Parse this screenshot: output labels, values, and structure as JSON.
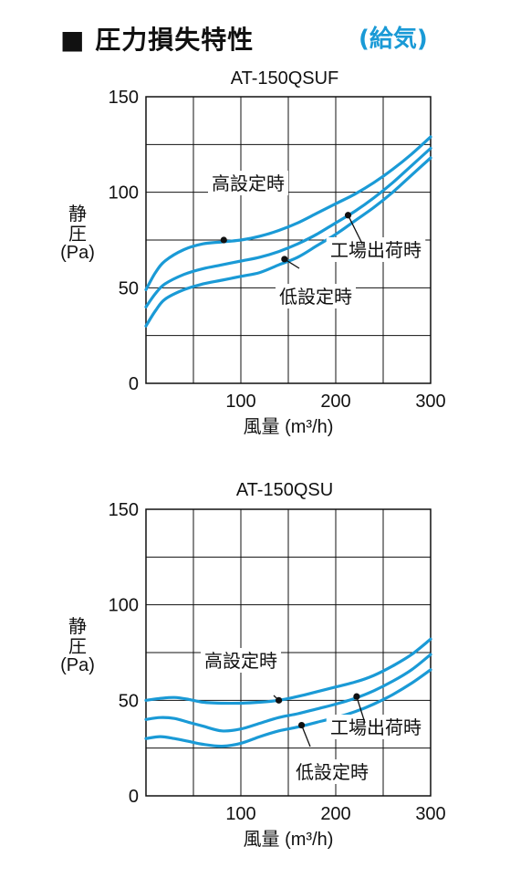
{
  "header": {
    "title": "■ 圧力損失特性",
    "subtitle": "(給気)",
    "subtitle_color": "#1a9ad6"
  },
  "colors": {
    "curve": "#1a9ad6",
    "grid": "#111111",
    "marker": "#111111"
  },
  "chart_data": [
    {
      "type": "line",
      "title": "AT-150QSUF",
      "xlabel": "風量 (m³/h)",
      "ylabel": "静圧 (Pa)",
      "xlim": [
        0,
        300
      ],
      "ylim": [
        0,
        150
      ],
      "xticks": [
        100,
        200,
        300
      ],
      "yticks": [
        0,
        50,
        100,
        150
      ],
      "grid": true,
      "series": [
        {
          "name": "高設定時",
          "x": [
            0,
            10,
            20,
            40,
            60,
            80,
            100,
            120,
            140,
            160,
            180,
            200,
            220,
            240,
            260,
            280,
            300
          ],
          "y": [
            49,
            58,
            64,
            70,
            73,
            74,
            75,
            77,
            80,
            84,
            89,
            94,
            99,
            105,
            112,
            120,
            129
          ]
        },
        {
          "name": "工場出荷時",
          "x": [
            0,
            10,
            20,
            40,
            60,
            80,
            100,
            120,
            140,
            160,
            180,
            200,
            220,
            240,
            260,
            280,
            300
          ],
          "y": [
            40,
            47,
            52,
            57,
            60,
            62,
            64,
            66,
            69,
            73,
            78,
            84,
            90,
            97,
            105,
            114,
            123
          ]
        },
        {
          "name": "低設定時",
          "x": [
            0,
            10,
            20,
            40,
            60,
            80,
            100,
            120,
            140,
            160,
            180,
            200,
            220,
            240,
            260,
            280,
            300
          ],
          "y": [
            30,
            38,
            44,
            49,
            52,
            54,
            56,
            58,
            62,
            66,
            72,
            78,
            85,
            92,
            100,
            109,
            118
          ]
        }
      ],
      "annotations": [
        {
          "text": "高設定時",
          "x": 82,
          "y": 75
        },
        {
          "text": "工場出荷時",
          "x": 213,
          "y": 88
        },
        {
          "text": "低設定時",
          "x": 146,
          "y": 65
        }
      ]
    },
    {
      "type": "line",
      "title": "AT-150QSU",
      "xlabel": "風量 (m³/h)",
      "ylabel": "静圧 (Pa)",
      "xlim": [
        0,
        300
      ],
      "ylim": [
        0,
        150
      ],
      "xticks": [
        100,
        200,
        300
      ],
      "yticks": [
        0,
        50,
        100,
        150
      ],
      "grid": true,
      "series": [
        {
          "name": "高設定時",
          "x": [
            0,
            15,
            30,
            45,
            60,
            80,
            100,
            120,
            140,
            160,
            180,
            200,
            220,
            240,
            260,
            280,
            300
          ],
          "y": [
            50,
            51,
            51.5,
            50.5,
            49,
            48.5,
            48.5,
            49,
            50,
            52,
            54.5,
            57,
            59.5,
            63,
            68,
            74,
            82
          ]
        },
        {
          "name": "工場出荷時",
          "x": [
            0,
            15,
            30,
            45,
            60,
            80,
            100,
            120,
            140,
            160,
            180,
            200,
            220,
            240,
            260,
            280,
            300
          ],
          "y": [
            40,
            41,
            40.5,
            38.5,
            36.5,
            34,
            35,
            38,
            41,
            43,
            45.5,
            48,
            51,
            55,
            60,
            66,
            74
          ]
        },
        {
          "name": "低設定時",
          "x": [
            0,
            15,
            30,
            45,
            60,
            80,
            100,
            120,
            140,
            160,
            180,
            200,
            220,
            240,
            260,
            280,
            300
          ],
          "y": [
            30,
            31,
            30,
            28.5,
            27,
            26,
            27.5,
            31,
            34,
            36,
            38.5,
            41,
            44,
            48,
            53,
            59,
            66
          ]
        }
      ],
      "annotations": [
        {
          "text": "高設定時",
          "x": 140,
          "y": 50
        },
        {
          "text": "工場出荷時",
          "x": 222,
          "y": 52
        },
        {
          "text": "低設定時",
          "x": 164,
          "y": 37
        }
      ]
    }
  ]
}
